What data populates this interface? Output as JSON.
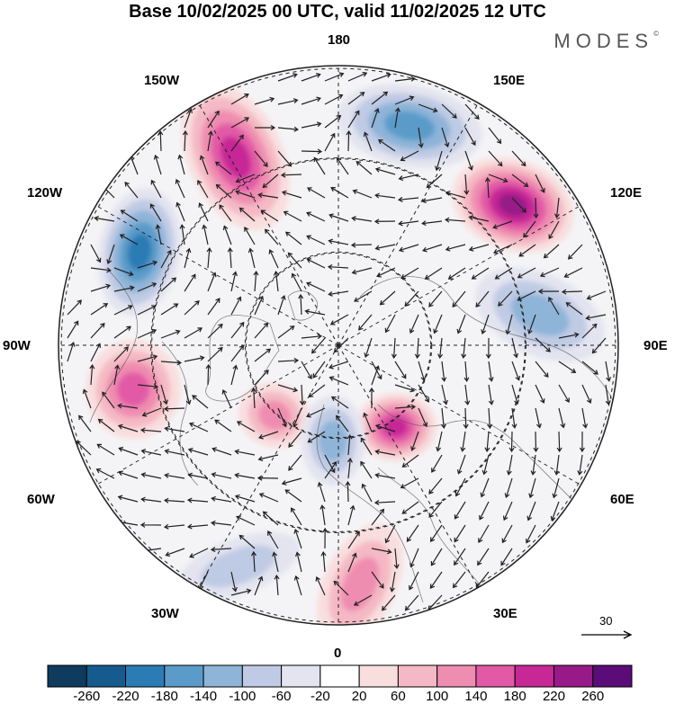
{
  "title": "Base 10/02/2025 00 UTC, valid 11/02/2025 12 UTC",
  "brand": "MODES",
  "brand_mark": "©",
  "longitudes": {
    "top": "180",
    "top_left": "150W",
    "top_right": "150E",
    "upper_left": "120W",
    "upper_right": "120E",
    "left": "90W",
    "right": "90E",
    "lower_left": "60W",
    "lower_right": "60E",
    "bottom_left": "30W",
    "bottom_right": "30E",
    "bottom": "0"
  },
  "reference_vector": "30",
  "colorbar": {
    "labels": [
      "-260",
      "-220",
      "-180",
      "-140",
      "-100",
      "-60",
      "-20",
      "20",
      "60",
      "100",
      "140",
      "180",
      "220",
      "260"
    ],
    "colors": [
      "#0e3b5e",
      "#155b8e",
      "#2b7bb5",
      "#5a9bc9",
      "#8eb4d8",
      "#bfcbe4",
      "#e4e4f0",
      "#ffffff",
      "#f9dede",
      "#f4b9c4",
      "#ef8db0",
      "#e25aa6",
      "#c72896",
      "#971a88",
      "#5c0c78"
    ]
  },
  "map": {
    "projection": "north-polar-stereographic",
    "anomalies": [
      {
        "center": "north-pacific-east",
        "sign": "positive",
        "value": 200
      },
      {
        "center": "north-pacific-west",
        "sign": "negative",
        "value": -160
      },
      {
        "center": "eastern-siberia",
        "sign": "positive",
        "value": 260
      },
      {
        "center": "alaska-canada-west",
        "sign": "negative",
        "value": -220
      },
      {
        "center": "central-siberia",
        "sign": "negative",
        "value": -140
      },
      {
        "center": "canada-east",
        "sign": "positive",
        "value": 160
      },
      {
        "center": "greenland-sea",
        "sign": "positive",
        "value": 140
      },
      {
        "center": "scandinavia",
        "sign": "positive",
        "value": 200
      },
      {
        "center": "north-atlantic",
        "sign": "negative",
        "value": -140
      },
      {
        "center": "mid-atlantic",
        "sign": "negative",
        "value": -100
      },
      {
        "center": "west-africa",
        "sign": "positive",
        "value": 120
      }
    ]
  }
}
